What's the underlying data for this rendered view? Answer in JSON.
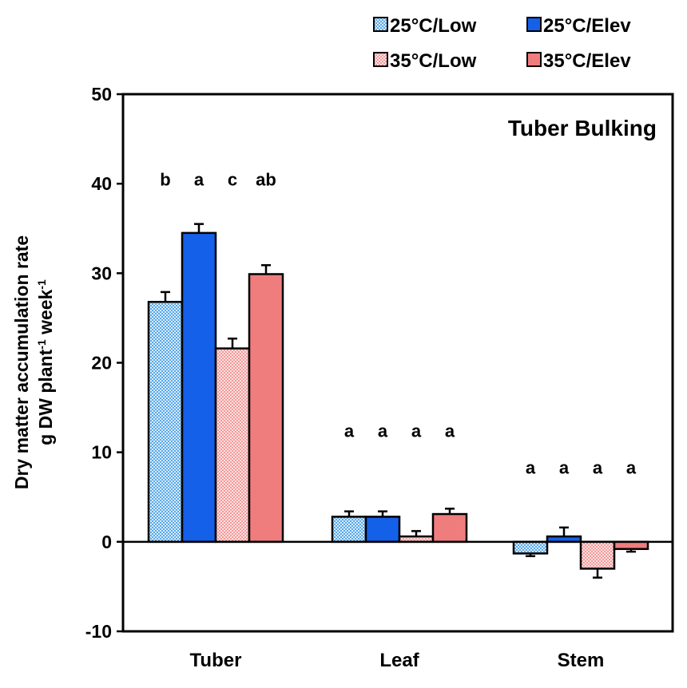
{
  "chart_data": {
    "type": "bar",
    "title": "Tuber Bulking",
    "ylabel_line1": "Dry matter accumulation rate",
    "ylabel_line2_prefix": "g DW plant",
    "ylabel_line2_exp1": "-1",
    "ylabel_line2_mid": " week",
    "ylabel_line2_exp2": "-1",
    "xlabel": "",
    "ylim": [
      -10,
      50
    ],
    "yticks": [
      -10,
      0,
      10,
      20,
      30,
      40,
      50
    ],
    "ytick_labels": [
      "-10",
      "0",
      "10",
      "20",
      "30",
      "40",
      "50"
    ],
    "categories": [
      "Tuber",
      "Leaf",
      "Stem"
    ],
    "series": [
      {
        "name": "25°C/Low",
        "color": "#5aa8e8",
        "pattern": "checker",
        "values": [
          26.8,
          2.8,
          -1.3
        ],
        "errors": [
          1.1,
          0.6,
          0.3
        ],
        "letters": [
          "b",
          "a",
          "a"
        ]
      },
      {
        "name": "25°C/Elev",
        "color": "#1560e8",
        "pattern": "solid",
        "values": [
          34.5,
          2.8,
          0.6
        ],
        "errors": [
          1.0,
          0.6,
          1.0
        ],
        "letters": [
          "a",
          "a",
          "a"
        ]
      },
      {
        "name": "35°C/Low",
        "color": "#f29a9a",
        "pattern": "checker",
        "values": [
          21.6,
          0.6,
          -3.0
        ],
        "errors": [
          1.1,
          0.6,
          1.0
        ],
        "letters": [
          "c",
          "a",
          "a"
        ]
      },
      {
        "name": "35°C/Elev",
        "color": "#f07d7d",
        "pattern": "solid",
        "values": [
          29.9,
          3.1,
          -0.8
        ],
        "errors": [
          1.0,
          0.6,
          0.3
        ],
        "letters": [
          "ab",
          "a",
          "a"
        ]
      }
    ],
    "grid": false,
    "legend_position": "top-right"
  }
}
